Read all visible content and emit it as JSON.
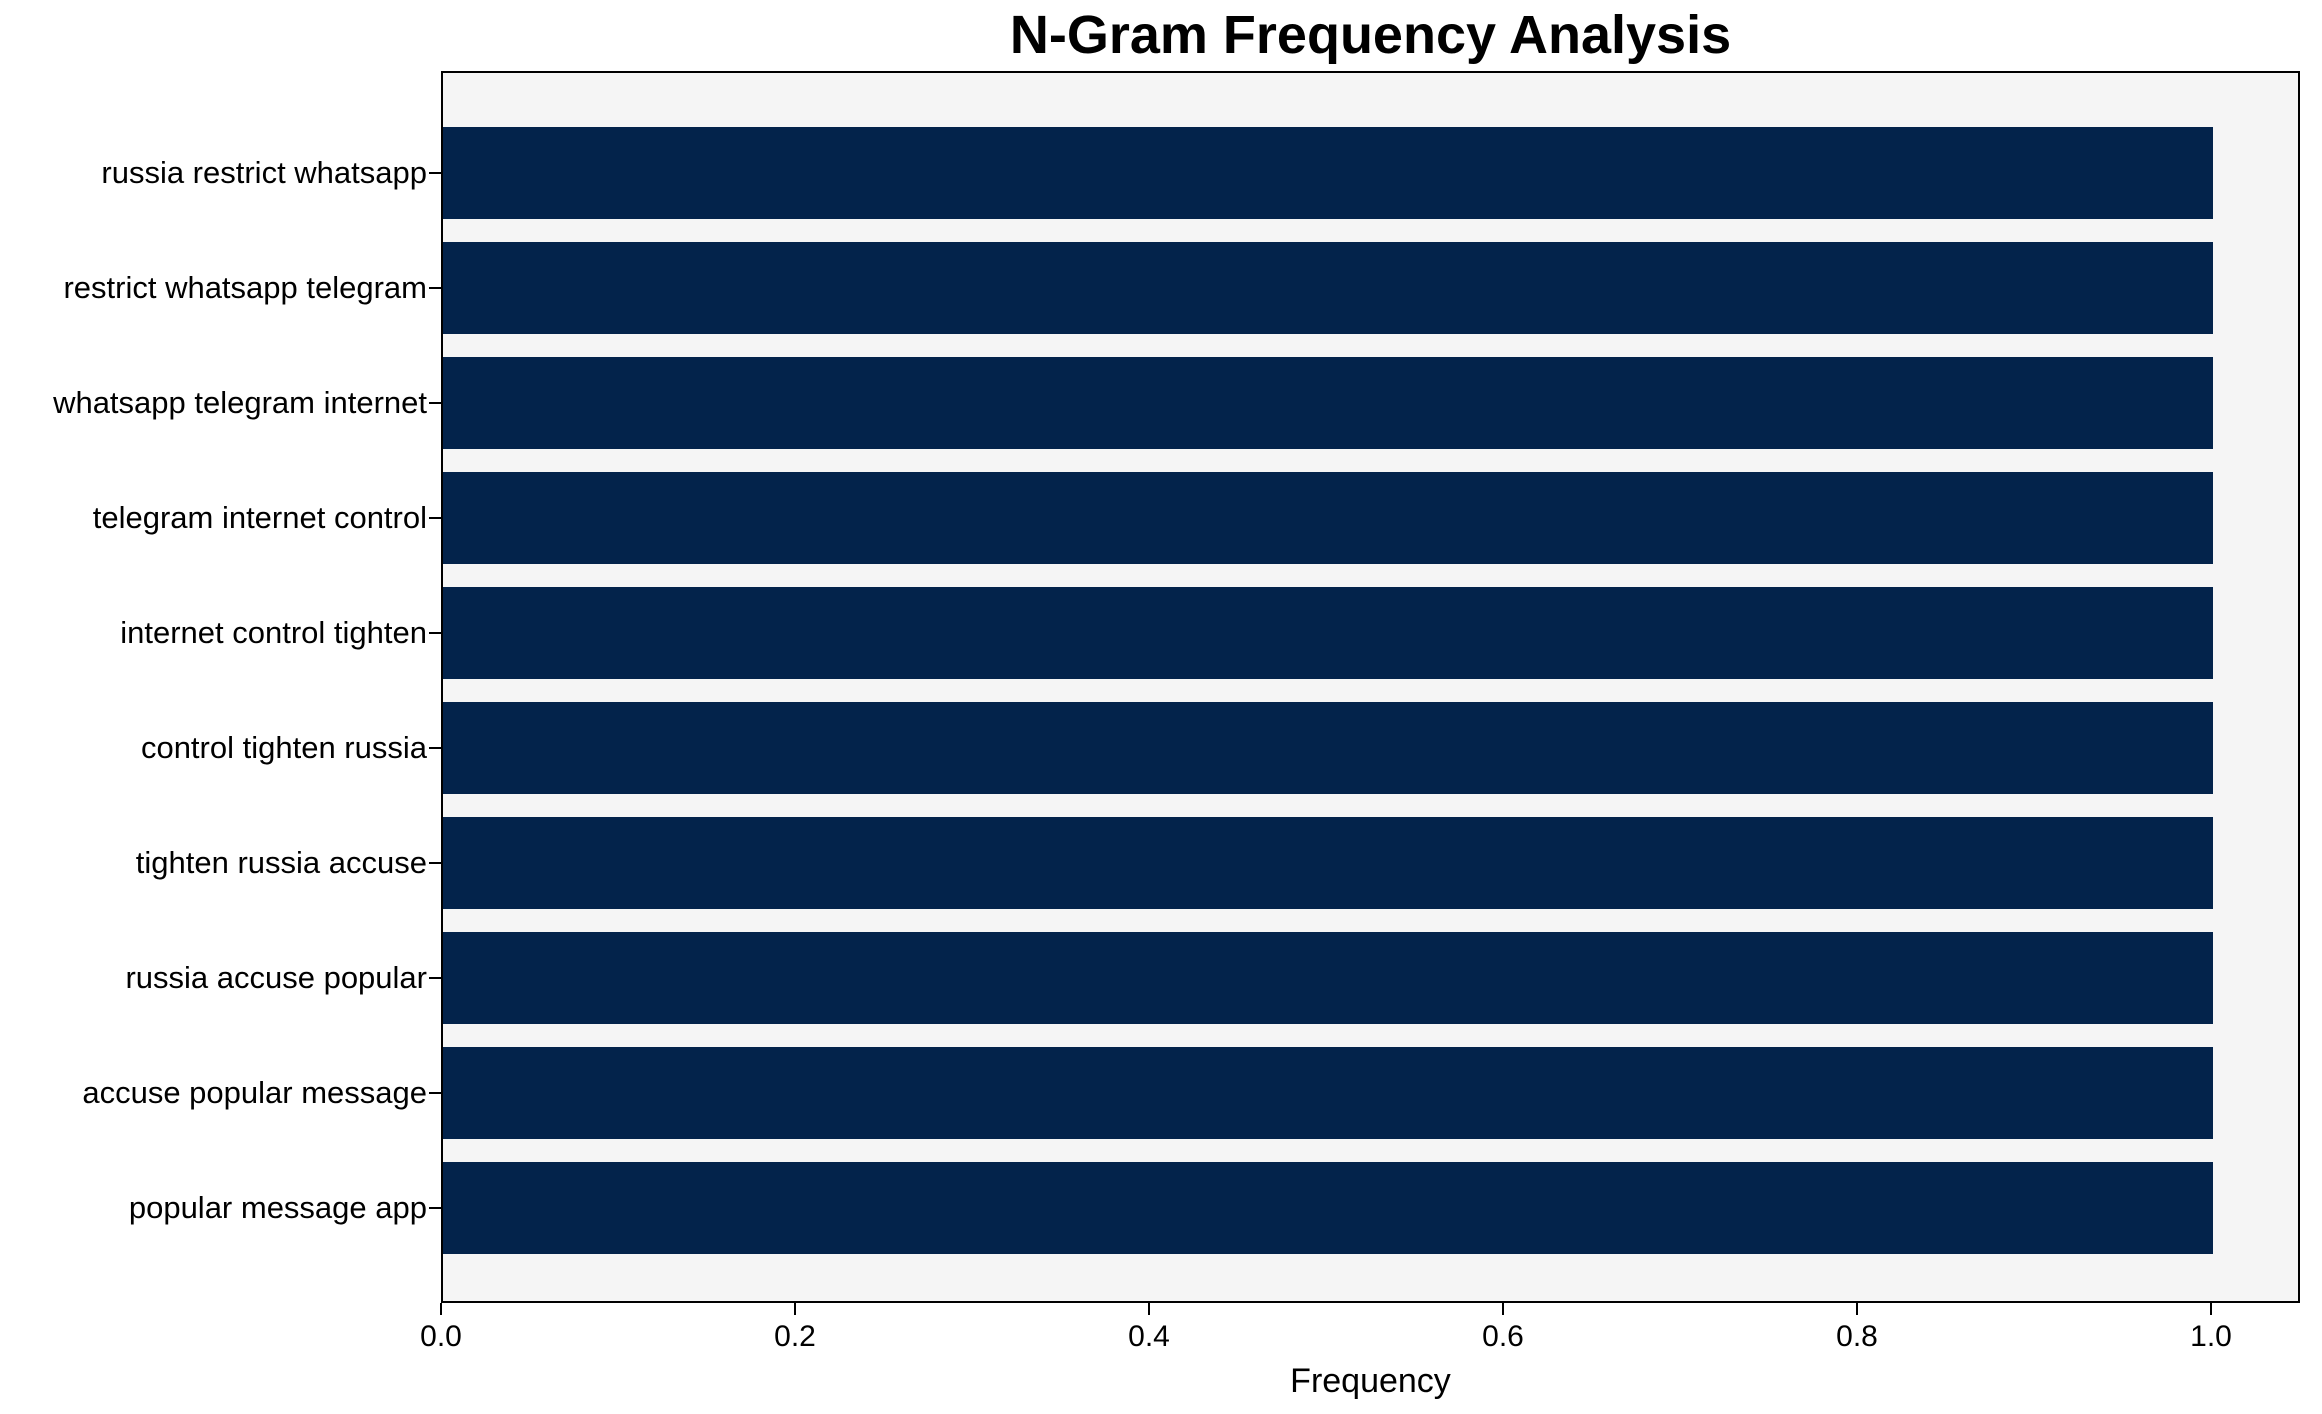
{
  "chart_data": {
    "type": "bar",
    "orientation": "horizontal",
    "title": "N-Gram Frequency Analysis",
    "xlabel": "Frequency",
    "ylabel": "",
    "categories": [
      "russia restrict whatsapp",
      "restrict whatsapp telegram",
      "whatsapp telegram internet",
      "telegram internet control",
      "internet control tighten",
      "control tighten russia",
      "tighten russia accuse",
      "russia accuse popular",
      "accuse popular message",
      "popular message app"
    ],
    "values": [
      1.0,
      1.0,
      1.0,
      1.0,
      1.0,
      1.0,
      1.0,
      1.0,
      1.0,
      1.0
    ],
    "x_ticks": [
      0.0,
      0.2,
      0.4,
      0.6,
      0.8,
      1.0
    ],
    "x_tick_labels": [
      "0.0",
      "0.2",
      "0.4",
      "0.6",
      "0.8",
      "1.0"
    ],
    "xlim": [
      0,
      1.05
    ],
    "grid": false,
    "legend_position": "none",
    "colors": {
      "bar": "#03234b",
      "plot_background": "#f5f5f5",
      "figure_background": "#ffffff",
      "spine": "#000000",
      "text": "#000000"
    }
  }
}
